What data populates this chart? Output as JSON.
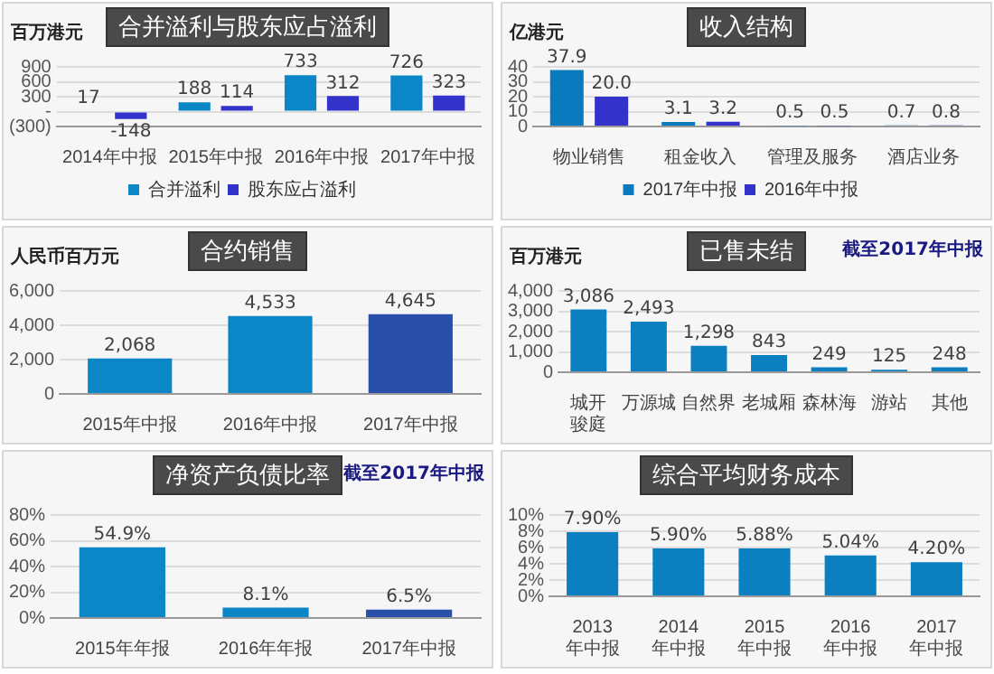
{
  "chart_data": [
    {
      "type": "bar",
      "title": "合并溢利与股东应占溢利",
      "ylabel": "百万港元",
      "categories": [
        "2014年中报",
        "2015年中报",
        "2016年中报",
        "2017年中报"
      ],
      "series": [
        {
          "name": "合并溢利",
          "color": "#0b86c6",
          "values": [
            17,
            188,
            733,
            726
          ],
          "value_labels": [
            "17",
            "188",
            "733",
            "726"
          ]
        },
        {
          "name": "股东应占溢利",
          "color": "#3333cc",
          "values": [
            -148,
            114,
            312,
            323
          ],
          "value_labels": [
            "-148",
            "114",
            "312",
            "323"
          ]
        }
      ],
      "ylim": [
        -300,
        900
      ],
      "yticks": [
        {
          "value": -300,
          "label": "(300)"
        },
        {
          "value": 0,
          "label": "-"
        },
        300,
        600,
        900
      ],
      "grid": "y",
      "legend": "bottom"
    },
    {
      "type": "bar",
      "title": "收入结构",
      "ylabel": "亿港元",
      "categories": [
        "物业销售",
        "租金收入",
        "管理及服务",
        "酒店业务"
      ],
      "series": [
        {
          "name": "2017年中报",
          "color": "#0a79bd",
          "values": [
            37.9,
            3.1,
            0.5,
            0.7
          ],
          "value_labels": [
            "37.9",
            "3.1",
            "0.5",
            "0.7"
          ]
        },
        {
          "name": "2016年中报",
          "color": "#3333cc",
          "values": [
            20.0,
            3.2,
            0.5,
            0.8
          ],
          "value_labels": [
            "20.0",
            "3.2",
            "0.5",
            "0.8"
          ]
        }
      ],
      "ylim": [
        0,
        40
      ],
      "yticks": [
        0,
        10,
        20,
        30,
        40
      ],
      "grid": "y",
      "legend": "bottom"
    },
    {
      "type": "bar",
      "title": "合约销售",
      "ylabel": "人民币百万元",
      "categories": [
        "2015年中报",
        "2016年中报",
        "2017年中报"
      ],
      "values": [
        2068,
        4533,
        4645
      ],
      "colors": [
        "#0b86c6",
        "#0b86c6",
        "#2a4fa8"
      ],
      "value_labels": [
        "2,068",
        "4,533",
        "4,645"
      ],
      "ylim": [
        0,
        6000
      ],
      "yticks": [
        0,
        {
          "value": 2000,
          "label": "2,000"
        },
        {
          "value": 4000,
          "label": "4,000"
        },
        {
          "value": 6000,
          "label": "6,000"
        }
      ],
      "grid": "y"
    },
    {
      "type": "bar",
      "title": "已售未结",
      "subtitle": "截至2017年中报",
      "ylabel": "百万港元",
      "categories": [
        "城开骏庭",
        "万源城",
        "自然界",
        "老城厢",
        "森林海",
        "游站",
        "其他"
      ],
      "values": [
        3086,
        2493,
        1298,
        843,
        249,
        125,
        248
      ],
      "colors": [
        "#0b7fc0",
        "#0b7fc0",
        "#0b7fc0",
        "#0b7fc0",
        "#0b7fc0",
        "#0b7fc0",
        "#0b7fc0"
      ],
      "value_labels": [
        "3,086",
        "2,493",
        "1,298",
        "843",
        "249",
        "125",
        "248"
      ],
      "ylim": [
        0,
        4000
      ],
      "yticks": [
        0,
        {
          "value": 1000,
          "label": "1,000"
        },
        {
          "value": 2000,
          "label": "2,000"
        },
        {
          "value": 3000,
          "label": "3,000"
        },
        {
          "value": 4000,
          "label": "4,000"
        }
      ],
      "grid": "y"
    },
    {
      "type": "bar",
      "title": "净资产负债比率",
      "subtitle": "截至2017年中报",
      "categories": [
        "2015年年报",
        "2016年年报",
        "2017年中报"
      ],
      "values": [
        54.9,
        8.1,
        6.5
      ],
      "colors": [
        "#0b86c6",
        "#0b86c6",
        "#2a4fa8"
      ],
      "value_labels": [
        "54.9%",
        "8.1%",
        "6.5%"
      ],
      "ylim": [
        0,
        80
      ],
      "yticks": [
        {
          "value": 0,
          "label": "0%"
        },
        {
          "value": 20,
          "label": "20%"
        },
        {
          "value": 40,
          "label": "40%"
        },
        {
          "value": 60,
          "label": "60%"
        },
        {
          "value": 80,
          "label": "80%"
        }
      ],
      "grid": "y"
    },
    {
      "type": "bar",
      "title": "综合平均财务成本",
      "categories": [
        "2013年中报",
        "2014年中报",
        "2015年中报",
        "2016年中报",
        "2017年中报"
      ],
      "values": [
        7.9,
        5.9,
        5.88,
        5.04,
        4.2
      ],
      "colors": [
        "#0b7fc0",
        "#0b7fc0",
        "#0b7fc0",
        "#0b7fc0",
        "#0b7fc0"
      ],
      "value_labels": [
        "7.90%",
        "5.90%",
        "5.88%",
        "5.04%",
        "4.20%"
      ],
      "ylim": [
        0,
        10
      ],
      "yticks": [
        {
          "value": 0,
          "label": "0%"
        },
        {
          "value": 2,
          "label": "2%"
        },
        {
          "value": 4,
          "label": "4%"
        },
        {
          "value": 6,
          "label": "6%"
        },
        {
          "value": 8,
          "label": "8%"
        },
        {
          "value": 10,
          "label": "10%"
        }
      ],
      "grid": "y"
    }
  ]
}
